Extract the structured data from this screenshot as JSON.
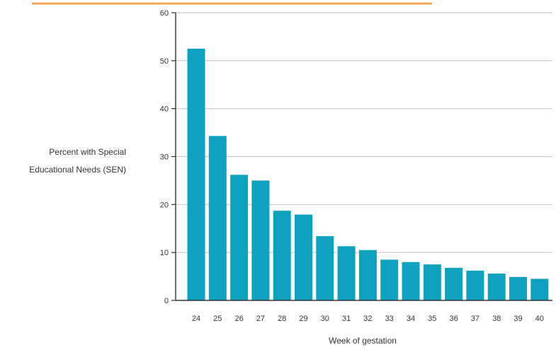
{
  "colors": {
    "bar": "#0fa2bf",
    "grid": "#c8c8c8",
    "axis": "#333333",
    "text": "#333333",
    "accent_top": "#f2a65a"
  },
  "chart_data": {
    "type": "bar",
    "title": "",
    "ylabel_lines": [
      "Percent with Special",
      "Educational Needs (SEN)"
    ],
    "xlabel": "Week of gestation",
    "categories": [
      "24",
      "25",
      "26",
      "27",
      "28",
      "29",
      "30",
      "31",
      "32",
      "33",
      "34",
      "35",
      "36",
      "37",
      "38",
      "39",
      "40"
    ],
    "values": [
      52.5,
      34.3,
      26.2,
      25.0,
      18.7,
      17.9,
      13.4,
      11.3,
      10.5,
      8.5,
      8.0,
      7.5,
      6.8,
      6.2,
      5.6,
      4.9,
      4.5
    ],
    "ylim": [
      0,
      60
    ],
    "yticks": [
      0,
      10,
      20,
      30,
      40,
      50,
      60
    ],
    "grid": true,
    "legend": "none"
  }
}
